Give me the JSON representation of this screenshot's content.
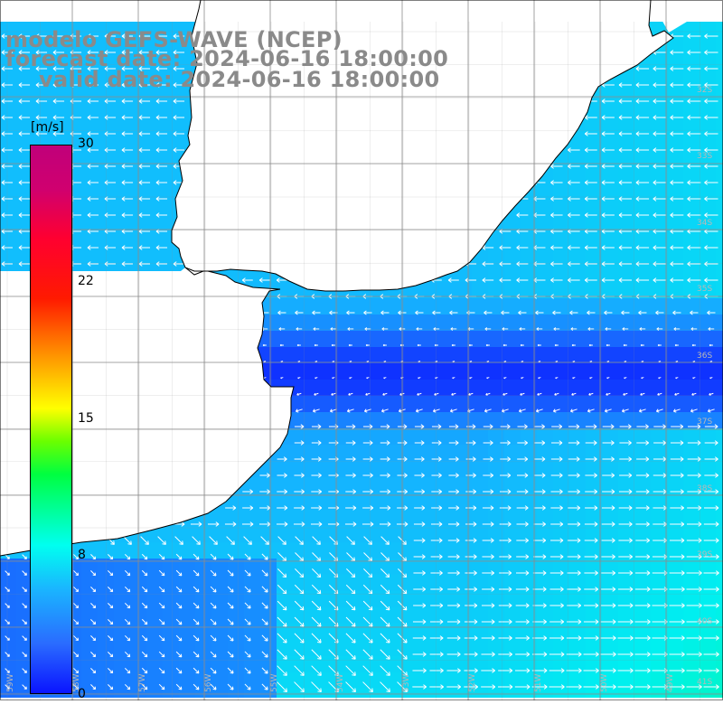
{
  "title": {
    "line1": "modelo GEFS-WAVE (NCEP)",
    "line2": "forecast date: 2024-06-16 18:00:00",
    "line3": "valid date: 2024-06-16 18:00:00"
  },
  "legend": {
    "unit": "[m/s]",
    "ticks": [
      "30",
      "22",
      "15",
      "8",
      "0"
    ],
    "colors": [
      "#0a14ff",
      "#1ab5ff",
      "#00fff0",
      "#00ff40",
      "#ffff00",
      "#ff9000",
      "#ff1a00",
      "#c0007a"
    ]
  },
  "lat_labels": [
    "32S",
    "33S",
    "34S",
    "35S",
    "36S",
    "37S",
    "38S",
    "39S",
    "40S",
    "41S"
  ],
  "lon_labels": [
    "59W",
    "58W",
    "57W",
    "56W",
    "55W",
    "54W",
    "53W",
    "52W",
    "51W",
    "50W",
    "49W"
  ],
  "map_colors": {
    "land": "#ffffff",
    "grid": "#8c8c8c",
    "coast": "#000000",
    "arrow": "#ffffff"
  }
}
